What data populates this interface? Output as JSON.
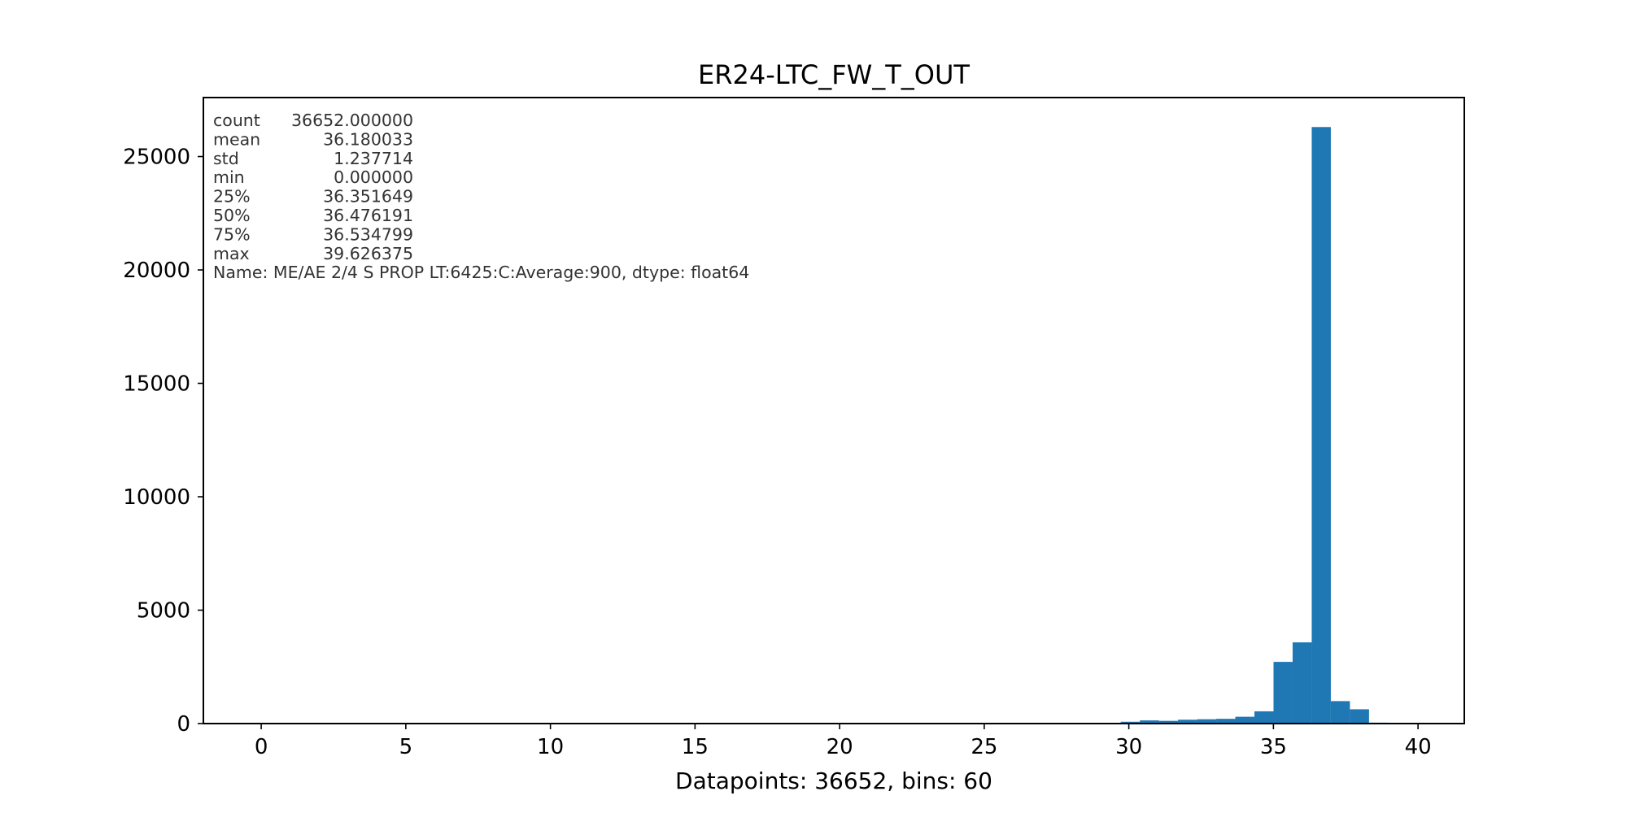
{
  "chart_data": {
    "type": "bar",
    "title": "ER24-LTC_FW_T_OUT",
    "xlabel": "Datapoints: 36652, bins: 60",
    "ylabel": "",
    "xlim": [
      -2.0,
      41.6
    ],
    "ylim": [
      0,
      27600
    ],
    "x_ticks": [
      0,
      5,
      10,
      15,
      20,
      25,
      30,
      35,
      40
    ],
    "y_ticks": [
      0,
      5000,
      10000,
      15000,
      20000,
      25000
    ],
    "x_tick_labels": [
      "0",
      "5",
      "10",
      "15",
      "20",
      "25",
      "30",
      "35",
      "40"
    ],
    "y_tick_labels": [
      "0",
      "5000",
      "10000",
      "15000",
      "20000",
      "25000"
    ],
    "grid": false,
    "bar_color": "#1f77b4",
    "bins": {
      "start": 0.0,
      "width": 0.66044,
      "values": [
        1,
        0,
        0,
        0,
        0,
        0,
        0,
        0,
        0,
        0,
        0,
        0,
        0,
        0,
        0,
        0,
        0,
        0,
        0,
        0,
        0,
        0,
        0,
        0,
        0,
        0,
        0,
        0,
        0,
        0,
        0,
        0,
        0,
        0,
        0,
        0,
        0,
        0,
        0,
        0,
        0,
        0,
        0,
        0,
        30,
        80,
        140,
        120,
        170,
        190,
        210,
        300,
        540,
        2720,
        3580,
        26300,
        990,
        630,
        40,
        5
      ]
    },
    "stats_lines": [
      "count    36652.000000",
      "mean        36.180033",
      "std          1.237714",
      "min          0.000000",
      "25%         36.351649",
      "50%         36.476191",
      "75%         36.534799",
      "max         39.626375",
      "Name: ME/AE 2/4 S PROP LT:6425:C:Average:900, dtype: float64"
    ]
  }
}
